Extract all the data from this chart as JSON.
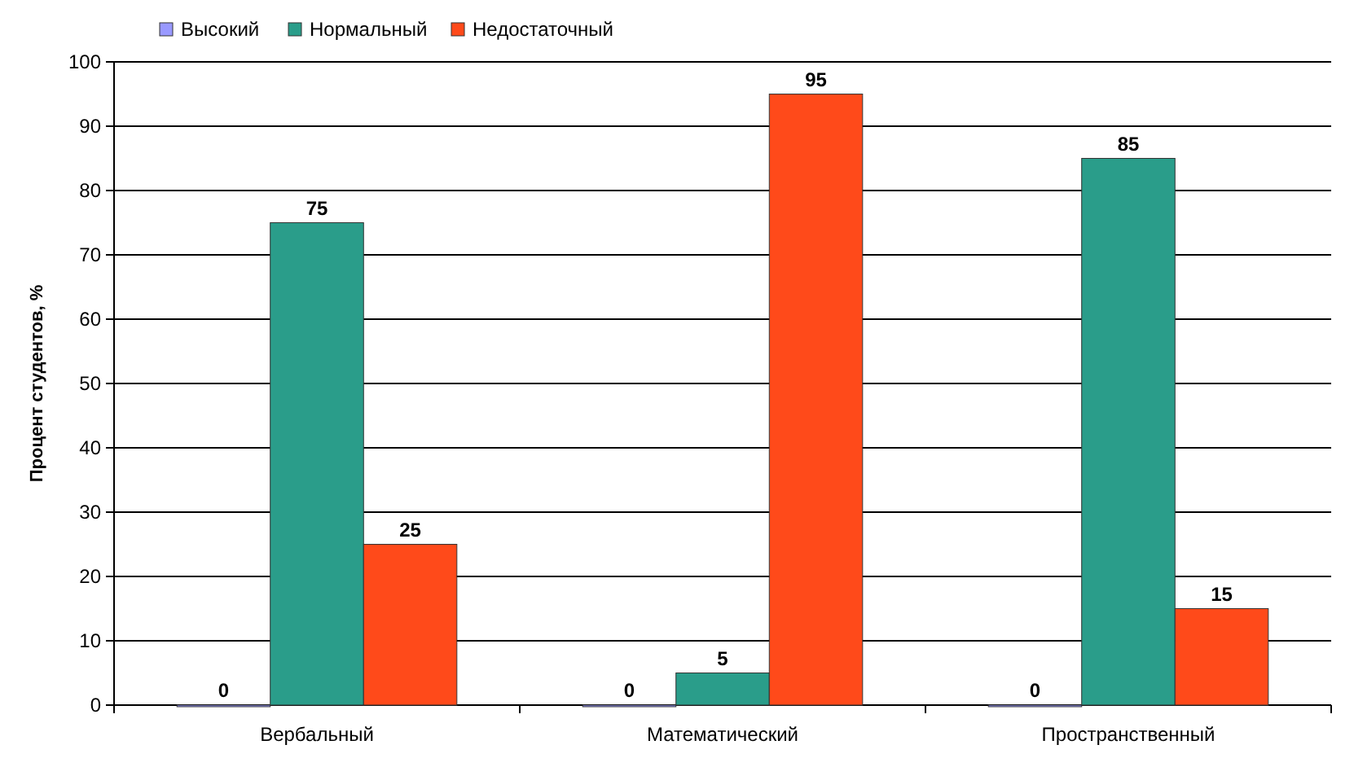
{
  "chart_data": {
    "type": "bar",
    "ylabel": "Процент студентов, %",
    "categories": [
      "Вербальный",
      "Математический",
      "Пространственный"
    ],
    "series": [
      {
        "name": "Высокий",
        "color": "#9999ff",
        "values": [
          0,
          0,
          0
        ]
      },
      {
        "name": "Нормальный",
        "color": "#2a9d8a",
        "values": [
          75,
          5,
          85
        ]
      },
      {
        "name": "Недостаточный",
        "color": "#ff4a1a",
        "values": [
          25,
          95,
          15
        ]
      }
    ],
    "ylim": [
      0,
      100
    ],
    "yticks": [
      0,
      10,
      20,
      30,
      40,
      50,
      60,
      70,
      80,
      90,
      100
    ],
    "grid": "y",
    "legend": "top left",
    "data_labels": true
  }
}
